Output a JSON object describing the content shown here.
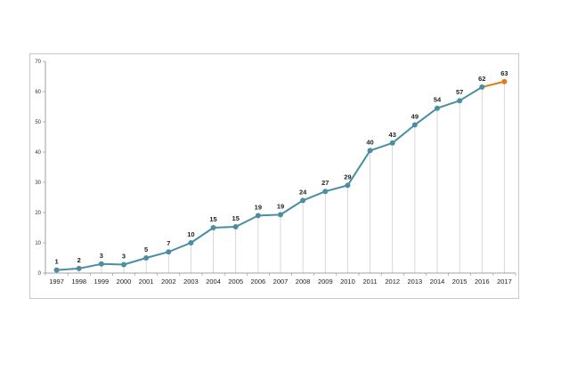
{
  "chart_data": {
    "type": "line",
    "categories": [
      "1997",
      "1998",
      "1999",
      "2000",
      "2001",
      "2002",
      "2003",
      "2004",
      "2005",
      "2006",
      "2007",
      "2008",
      "2009",
      "2010",
      "2011",
      "2012",
      "2013",
      "2014",
      "2015",
      "2016",
      "2017"
    ],
    "values": [
      1,
      1.5,
      3,
      2.8,
      5,
      7,
      10,
      15,
      15.3,
      19,
      19.3,
      24,
      27,
      29,
      40.5,
      43,
      49,
      54.5,
      57,
      61.5,
      63.3
    ],
    "labels": [
      "1",
      "2",
      "3",
      "3",
      "5",
      "7",
      "10",
      "15",
      "15",
      "19",
      "19",
      "24",
      "27",
      "29",
      "40",
      "43",
      "49",
      "54",
      "57",
      "62",
      "63"
    ],
    "ylim": [
      0,
      70
    ],
    "yticks": [
      0,
      10,
      20,
      30,
      40,
      50,
      60,
      70
    ],
    "grid": false,
    "drop_lines": true,
    "colors": {
      "line": "#4a8fa1",
      "marker": "#4a8fa1",
      "highlight": "#e07b1f",
      "drop_line": "#c8c8c8",
      "axis": "#888888"
    },
    "highlight_last_point": true
  }
}
